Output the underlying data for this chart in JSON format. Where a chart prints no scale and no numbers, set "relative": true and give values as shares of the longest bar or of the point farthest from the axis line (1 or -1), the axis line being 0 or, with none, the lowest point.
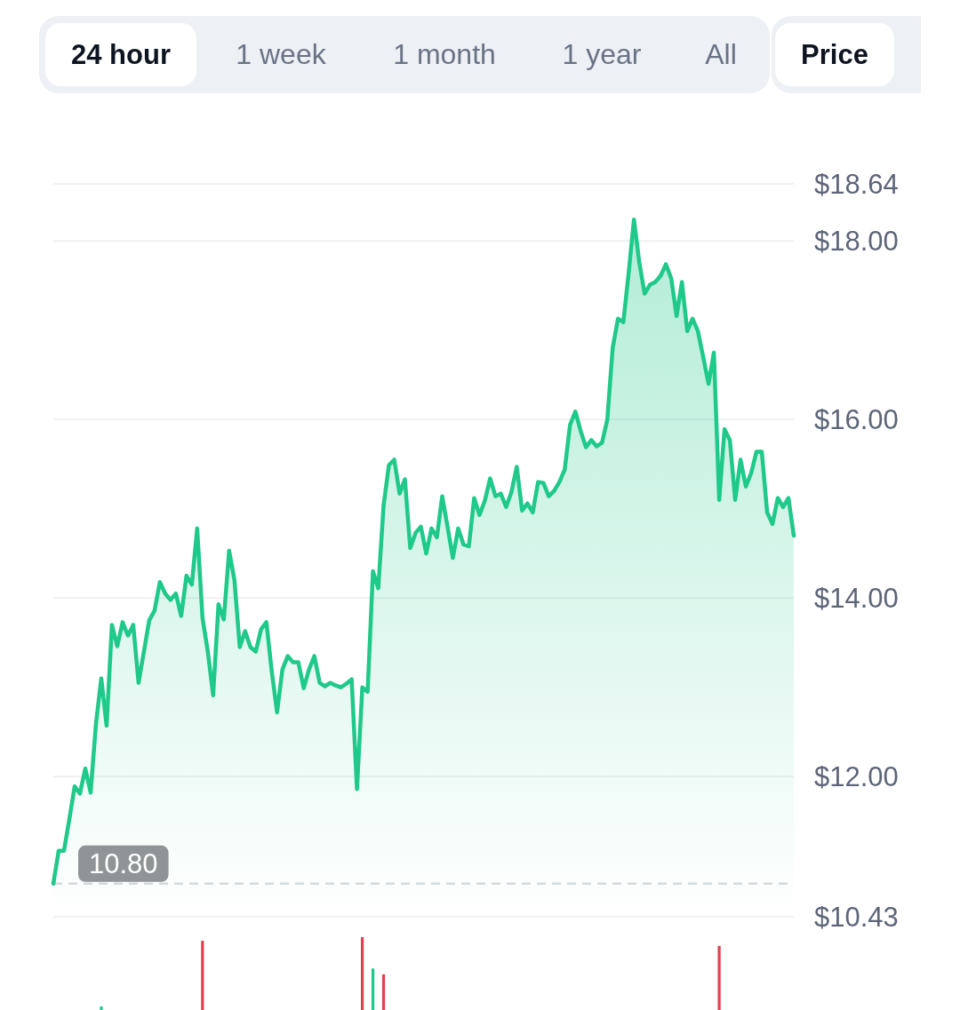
{
  "chart_data": [
    {
      "type": "area",
      "annotations": [
        "24 hour",
        "1 week",
        "1 month",
        "1 year",
        "All",
        "Price"
      ],
      "categories": [
        null,
        null,
        null,
        null,
        null,
        null,
        null,
        null,
        null,
        null,
        null,
        null,
        null,
        null,
        null,
        null,
        null,
        null,
        null,
        null,
        null,
        null,
        null,
        null,
        null,
        null,
        null,
        null,
        null,
        null,
        null,
        null,
        null,
        null,
        null,
        null,
        null,
        null,
        null,
        null,
        null,
        null,
        null,
        null,
        null,
        null,
        null,
        null,
        null,
        null,
        null,
        null,
        null,
        null,
        null,
        null,
        null,
        null,
        null,
        null,
        null,
        null,
        null,
        null,
        null,
        null,
        null,
        null,
        null,
        null,
        null,
        null,
        null,
        null,
        null,
        null,
        null,
        null,
        null,
        null,
        null,
        null,
        null,
        null,
        null,
        null,
        null,
        null,
        null,
        null,
        null,
        null,
        null,
        null,
        null,
        null,
        null,
        null,
        null,
        null,
        null,
        null,
        null,
        null,
        null,
        null,
        null,
        null,
        null,
        null,
        null,
        null,
        null,
        null,
        null,
        null,
        null,
        null,
        null,
        null,
        null,
        null,
        null,
        null,
        null,
        null,
        null,
        null,
        null,
        null,
        null,
        null,
        null,
        null,
        null,
        null,
        null,
        null,
        null,
        null
      ],
      "values": [
        10.8,
        11.17,
        11.17,
        11.52,
        11.89,
        11.81,
        12.09,
        11.82,
        12.59,
        13.1,
        12.57,
        13.7,
        13.46,
        13.73,
        13.58,
        13.7,
        13.05,
        13.4,
        13.75,
        13.86,
        14.18,
        14.05,
        13.98,
        14.05,
        13.8,
        14.25,
        14.15,
        14.78,
        13.78,
        13.4,
        12.91,
        13.93,
        13.76,
        14.53,
        14.2,
        13.45,
        13.63,
        13.45,
        13.4,
        13.65,
        13.73,
        13.18,
        12.72,
        13.2,
        13.35,
        13.28,
        13.28,
        12.99,
        13.2,
        13.35,
        13.05,
        13.01,
        13.05,
        13.02,
        13.0,
        13.04,
        13.09,
        11.86,
        13.0,
        12.95,
        14.3,
        14.11,
        15.04,
        15.49,
        15.55,
        15.17,
        15.33,
        14.56,
        14.73,
        14.8,
        14.5,
        14.78,
        14.68,
        15.14,
        14.8,
        14.45,
        14.78,
        14.6,
        14.58,
        15.12,
        14.93,
        15.09,
        15.34,
        15.14,
        15.17,
        15.02,
        15.19,
        15.47,
        14.98,
        15.06,
        14.96,
        15.3,
        15.29,
        15.14,
        15.2,
        15.3,
        15.44,
        15.94,
        16.09,
        15.87,
        15.69,
        15.77,
        15.7,
        15.74,
        16.0,
        16.8,
        17.13,
        17.09,
        17.64,
        18.24,
        17.76,
        17.41,
        17.51,
        17.54,
        17.61,
        17.74,
        17.58,
        17.16,
        17.54,
        16.99,
        17.13,
        16.99,
        16.7,
        16.4,
        16.75,
        15.1,
        15.89,
        15.77,
        15.1,
        15.55,
        15.25,
        15.4,
        15.64,
        15.64,
        14.96,
        14.83,
        15.12,
        15.02,
        15.12,
        14.7
      ],
      "color": "#1fc98a",
      "ylim": [
        10.43,
        18.64
      ],
      "yticks": [
        {
          "value": 10.43,
          "label": "$10.43"
        },
        {
          "value": 12,
          "label": "$12.00"
        },
        {
          "value": 14,
          "label": "$14.00"
        },
        {
          "value": 16,
          "label": "$16.00"
        },
        {
          "value": 18,
          "label": "$18.00"
        },
        {
          "value": 18.64,
          "label": "$18.64"
        }
      ],
      "grid": "y",
      "tick_labels": "y",
      "ref_lines": [
        {
          "axis": "y",
          "value": 10.8,
          "label": "10.80",
          "color": "#d6d9de",
          "line_style": "dashed"
        }
      ]
    },
    {
      "type": "bar",
      "relative": true,
      "categories": [
        null,
        null,
        null,
        null,
        null,
        null,
        null,
        null,
        null,
        null,
        null,
        null,
        null,
        null,
        null,
        null,
        null,
        null,
        null,
        null,
        null,
        null,
        null,
        null,
        null,
        null,
        null,
        null,
        null,
        null,
        null,
        null,
        null,
        null,
        null,
        null,
        null,
        null,
        null,
        null,
        null,
        null,
        null,
        null,
        null,
        null,
        null,
        null,
        null,
        null,
        null,
        null,
        null,
        null,
        null,
        null,
        null,
        null,
        null,
        null,
        null,
        null,
        null,
        null,
        null,
        null,
        null,
        null,
        null,
        null,
        null,
        null,
        null,
        null,
        null,
        null,
        null,
        null,
        null,
        null,
        null,
        null,
        null,
        null,
        null,
        null,
        null,
        null,
        null,
        null,
        null,
        null,
        null,
        null,
        null,
        null,
        null,
        null,
        null,
        null,
        null,
        null,
        null,
        null,
        null,
        null,
        null,
        null,
        null,
        null,
        null,
        null,
        null,
        null,
        null,
        null,
        null,
        null,
        null,
        null,
        null,
        null,
        null,
        null,
        null,
        null,
        null,
        null,
        null,
        null,
        null,
        null,
        null,
        null,
        null,
        null,
        null,
        null,
        null,
        null
      ],
      "values": [
        null,
        null,
        null,
        null,
        null,
        null,
        null,
        null,
        null,
        0.05,
        null,
        null,
        null,
        null,
        null,
        null,
        null,
        null,
        null,
        null,
        null,
        null,
        null,
        null,
        null,
        null,
        null,
        null,
        0.95,
        null,
        null,
        null,
        null,
        null,
        null,
        null,
        null,
        null,
        null,
        null,
        null,
        null,
        null,
        null,
        null,
        null,
        null,
        null,
        null,
        null,
        null,
        null,
        null,
        null,
        null,
        null,
        null,
        null,
        1,
        null,
        0.57,
        null,
        0.49,
        null,
        null,
        null,
        null,
        null,
        null,
        null,
        null,
        null,
        null,
        null,
        null,
        null,
        null,
        null,
        null,
        null,
        null,
        null,
        null,
        null,
        null,
        null,
        null,
        null,
        null,
        null,
        null,
        null,
        null,
        null,
        null,
        null,
        null,
        null,
        null,
        null,
        null,
        null,
        null,
        null,
        null,
        null,
        null,
        null,
        null,
        null,
        null,
        null,
        null,
        null,
        null,
        null,
        null,
        null,
        null,
        null,
        null,
        null,
        null,
        null,
        null,
        0.88,
        null,
        null,
        null,
        null,
        null,
        null,
        null,
        null,
        null,
        null,
        null,
        null,
        null,
        null
      ],
      "colors": [
        null,
        null,
        null,
        null,
        null,
        null,
        null,
        null,
        null,
        "#1fc98a",
        null,
        null,
        null,
        null,
        null,
        null,
        null,
        null,
        null,
        null,
        null,
        null,
        null,
        null,
        null,
        null,
        null,
        null,
        "#e0414e",
        null,
        null,
        null,
        null,
        null,
        null,
        null,
        null,
        null,
        null,
        null,
        null,
        null,
        null,
        null,
        null,
        null,
        null,
        null,
        null,
        null,
        null,
        null,
        null,
        null,
        null,
        null,
        null,
        null,
        "#e0414e",
        null,
        "#1fc98a",
        null,
        "#e0414e",
        null,
        null,
        null,
        null,
        null,
        null,
        null,
        null,
        null,
        null,
        null,
        null,
        null,
        null,
        null,
        null,
        null,
        null,
        null,
        null,
        null,
        null,
        null,
        null,
        null,
        null,
        null,
        null,
        null,
        null,
        null,
        null,
        null,
        null,
        null,
        null,
        null,
        null,
        null,
        null,
        null,
        null,
        null,
        null,
        null,
        null,
        null,
        null,
        null,
        null,
        null,
        null,
        null,
        null,
        null,
        null,
        null,
        null,
        null,
        null,
        null,
        null,
        "#e0414e",
        null,
        null,
        null,
        null,
        null,
        null,
        null,
        null,
        null,
        null,
        null,
        null,
        null,
        null
      ]
    }
  ]
}
